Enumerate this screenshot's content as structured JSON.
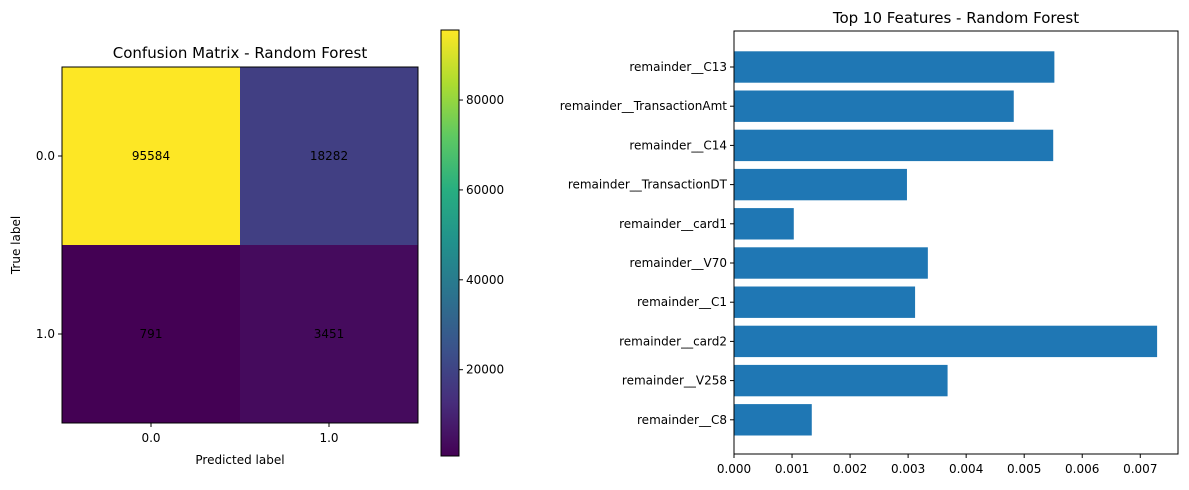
{
  "chart_data": [
    {
      "type": "heatmap",
      "title": "Confusion Matrix - Random Forest",
      "xlabel": "Predicted label",
      "ylabel": "True label",
      "x_categories": [
        "0.0",
        "1.0"
      ],
      "y_categories": [
        "0.0",
        "1.0"
      ],
      "values": [
        [
          95584,
          18282
        ],
        [
          791,
          3451
        ]
      ],
      "colormap": "viridis",
      "colorbar": {
        "ticks": [
          "20000",
          "40000",
          "60000",
          "80000"
        ],
        "tick_values": [
          20000,
          40000,
          60000,
          80000
        ],
        "range": [
          791,
          95584
        ]
      },
      "grid": false
    },
    {
      "type": "bar",
      "orientation": "horizontal",
      "title": "Top 10 Features - Random Forest",
      "xlabel": "",
      "ylabel": "",
      "categories": [
        "remainder__C13",
        "remainder__TransactionAmt",
        "remainder__C14",
        "remainder__TransactionDT",
        "remainder__card1",
        "remainder__V70",
        "remainder__C1",
        "remainder__card2",
        "remainder__V258",
        "remainder__C8"
      ],
      "values": [
        0.00552,
        0.00482,
        0.0055,
        0.00298,
        0.00103,
        0.00334,
        0.00312,
        0.00729,
        0.00368,
        0.00134
      ],
      "xlim": [
        0,
        0.00765
      ],
      "xticks": [
        "0.000",
        "0.001",
        "0.002",
        "0.003",
        "0.004",
        "0.005",
        "0.006",
        "0.007"
      ],
      "xtick_values": [
        0,
        0.001,
        0.002,
        0.003,
        0.004,
        0.005,
        0.006,
        0.007
      ],
      "bar_color": "#1f77b4",
      "grid": false
    }
  ]
}
